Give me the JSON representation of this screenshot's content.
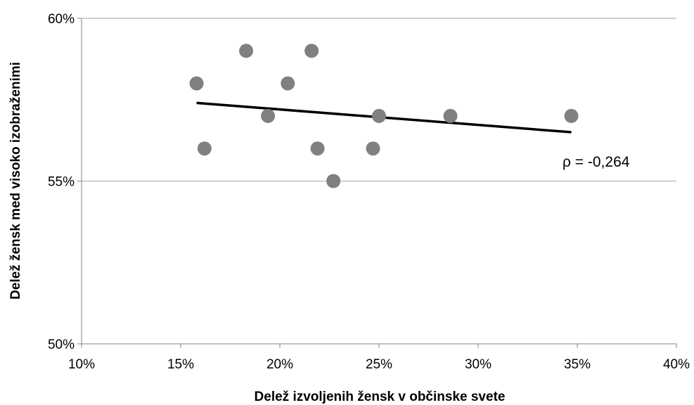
{
  "chart_data": {
    "type": "scatter",
    "title": "",
    "xlabel": "Delež izvoljenih žensk v občinske svete",
    "ylabel": "Delež žensk med visoko izobraženimi",
    "xlim": [
      10,
      40
    ],
    "ylim": [
      50,
      60
    ],
    "x_ticks": [
      10,
      15,
      20,
      25,
      30,
      35,
      40
    ],
    "y_ticks": [
      50,
      55,
      60
    ],
    "x_tick_labels": [
      "10%",
      "15%",
      "20%",
      "25%",
      "30%",
      "35%",
      "40%"
    ],
    "y_tick_labels": [
      "50%",
      "55%",
      "60%"
    ],
    "grid": "horizontal",
    "points": [
      {
        "x": 15.8,
        "y": 58
      },
      {
        "x": 16.2,
        "y": 56
      },
      {
        "x": 18.3,
        "y": 59
      },
      {
        "x": 19.4,
        "y": 57
      },
      {
        "x": 20.4,
        "y": 58
      },
      {
        "x": 21.6,
        "y": 59
      },
      {
        "x": 21.9,
        "y": 56
      },
      {
        "x": 22.7,
        "y": 55
      },
      {
        "x": 24.7,
        "y": 56
      },
      {
        "x": 25.0,
        "y": 57
      },
      {
        "x": 28.6,
        "y": 57
      },
      {
        "x": 34.7,
        "y": 57
      }
    ],
    "trendline": {
      "x1": 15.8,
      "y1": 57.4,
      "x2": 34.7,
      "y2": 56.5
    },
    "annotation": "ρ = -0,264",
    "point_color": "#808080",
    "line_color": "#000000"
  }
}
